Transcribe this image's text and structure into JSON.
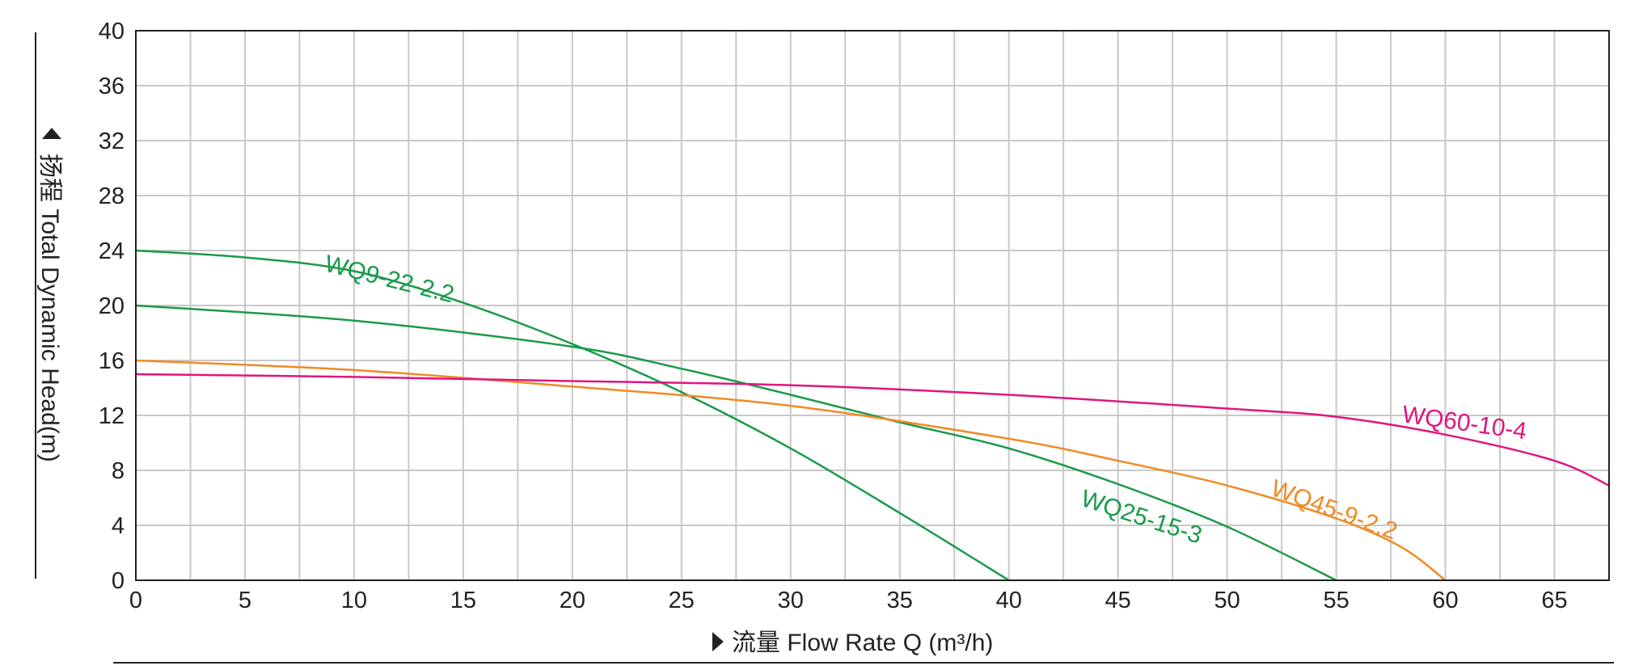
{
  "chart_data": {
    "type": "line",
    "title": "",
    "xlabel": "流量 Flow Rate Q (m³/h)",
    "ylabel": "扬程 Total Dynamic Head(m)",
    "xlim": [
      0,
      67.5
    ],
    "ylim": [
      0,
      40
    ],
    "x_ticks": [
      "0",
      "5",
      "10",
      "15",
      "20",
      "25",
      "30",
      "35",
      "40",
      "45",
      "50",
      "55",
      "60",
      "65"
    ],
    "y_ticks": [
      "0",
      "4",
      "8",
      "12",
      "16",
      "20",
      "24",
      "28",
      "32",
      "36",
      "40"
    ],
    "grid": true,
    "legend": "none",
    "series": [
      {
        "name": "WQ9-22-2.2",
        "color": "#1a9a4a",
        "points": [
          [
            0,
            24
          ],
          [
            5,
            23.5
          ],
          [
            10,
            22.5
          ],
          [
            15,
            20.2
          ],
          [
            20,
            17.2
          ],
          [
            25,
            13.7
          ],
          [
            30,
            9.6
          ],
          [
            35,
            4.9
          ],
          [
            40,
            0
          ]
        ]
      },
      {
        "name": "WQ25-15-3",
        "color": "#1a9a4a",
        "points": [
          [
            0,
            20
          ],
          [
            10,
            18.9
          ],
          [
            20,
            17
          ],
          [
            25,
            15.4
          ],
          [
            30,
            13.5
          ],
          [
            35,
            11.5
          ],
          [
            40,
            9.6
          ],
          [
            45,
            7
          ],
          [
            50,
            3.9
          ],
          [
            55,
            0
          ]
        ]
      },
      {
        "name": "WQ45-9-2.2",
        "color": "#f08a24",
        "points": [
          [
            0,
            16
          ],
          [
            10,
            15.3
          ],
          [
            20,
            14.1
          ],
          [
            30,
            12.7
          ],
          [
            40,
            10.3
          ],
          [
            45,
            8.7
          ],
          [
            50,
            6.9
          ],
          [
            55,
            4.5
          ],
          [
            58,
            2.4
          ],
          [
            60,
            0
          ]
        ]
      },
      {
        "name": "WQ60-10-4",
        "color": "#e0157f",
        "points": [
          [
            0,
            15
          ],
          [
            10,
            14.8
          ],
          [
            20,
            14.5
          ],
          [
            30,
            14.2
          ],
          [
            40,
            13.5
          ],
          [
            50,
            12.5
          ],
          [
            55,
            11.9
          ],
          [
            60,
            10.6
          ],
          [
            65,
            8.7
          ],
          [
            67.5,
            6.9
          ]
        ]
      }
    ]
  }
}
